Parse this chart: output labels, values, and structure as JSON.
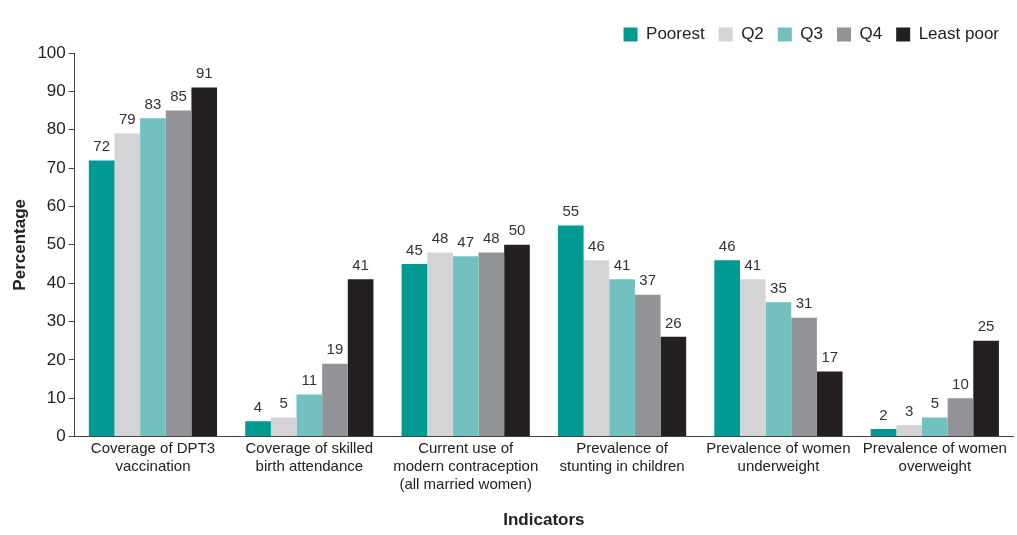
{
  "chart_data": {
    "type": "bar",
    "xlabel": "Indicators",
    "ylabel": "Percentage",
    "categories": [
      "Coverage of DPT3 vaccination",
      "Coverage of skilled birth attendance",
      "Current use of modern contraception (all married women)",
      "Prevalence of stunting in children",
      "Prevalence of women underweight",
      "Prevalence of women overweight"
    ],
    "series": [
      {
        "name": "Poorest",
        "color": "#009a93",
        "values": [
          72,
          4,
          45,
          55,
          46,
          2
        ]
      },
      {
        "name": "Q2",
        "color": "#d4d4d6",
        "values": [
          79,
          5,
          48,
          46,
          41,
          3
        ]
      },
      {
        "name": "Q3",
        "color": "#72c0c0",
        "values": [
          83,
          11,
          47,
          41,
          35,
          5
        ]
      },
      {
        "name": "Q4",
        "color": "#929397",
        "values": [
          85,
          19,
          48,
          37,
          31,
          10
        ]
      },
      {
        "name": "Least poor",
        "color": "#231f20",
        "values": [
          91,
          41,
          50,
          26,
          17,
          25
        ]
      }
    ],
    "ylim": [
      0,
      100
    ],
    "yticks": [
      0,
      10,
      20,
      30,
      40,
      50,
      60,
      70,
      80,
      90,
      100
    ],
    "data_labels": true,
    "legend": "top right",
    "grid": false
  }
}
